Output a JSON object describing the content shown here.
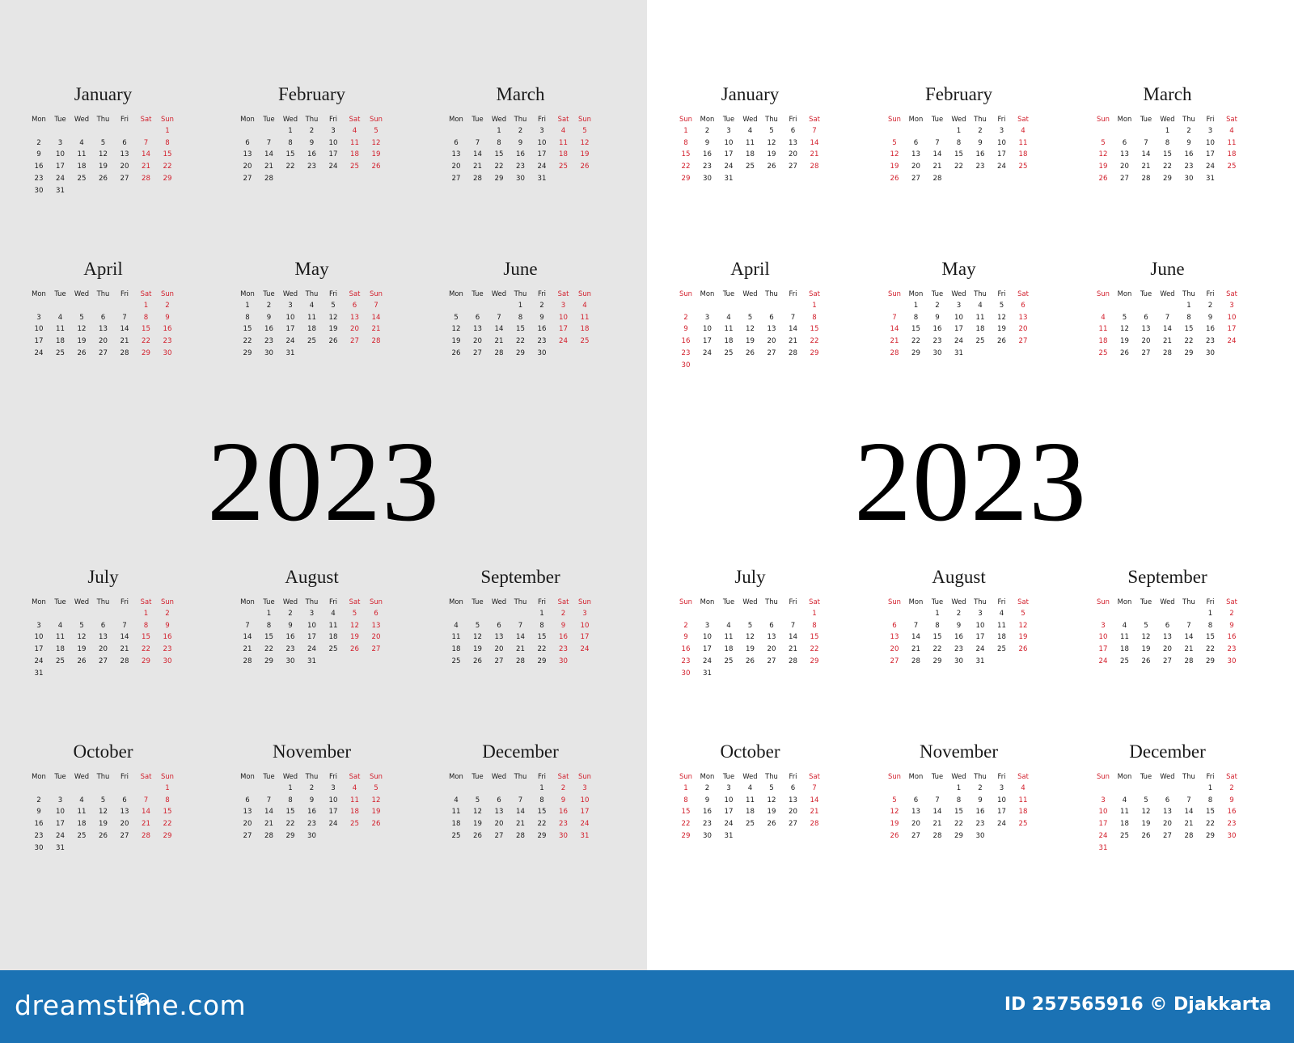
{
  "year": "2023",
  "colors": {
    "weekend": "#d21e2b",
    "text": "#1a1a1a",
    "gray_bg": "#e6e6e6",
    "banner": "#1b72b4"
  },
  "panels": [
    {
      "id": "mon-first",
      "background": "#e6e6e6",
      "week_start": "Mon",
      "weekday_labels": [
        "Mon",
        "Tue",
        "Wed",
        "Thu",
        "Fri",
        "Sat",
        "Sun"
      ],
      "weekend_columns": [
        5,
        6
      ],
      "year_text": "2023"
    },
    {
      "id": "sun-first",
      "background": "#ffffff",
      "week_start": "Sun",
      "weekday_labels": [
        "Sun",
        "Mon",
        "Tue",
        "Wed",
        "Thu",
        "Fri",
        "Sat"
      ],
      "weekend_columns": [
        0,
        6
      ],
      "year_text": "2023"
    }
  ],
  "months": [
    {
      "name": "January",
      "days": 31,
      "first_weekday_sun0": 0
    },
    {
      "name": "February",
      "days": 28,
      "first_weekday_sun0": 3
    },
    {
      "name": "March",
      "days": 31,
      "first_weekday_sun0": 3
    },
    {
      "name": "April",
      "days": 30,
      "first_weekday_sun0": 6
    },
    {
      "name": "May",
      "days": 31,
      "first_weekday_sun0": 1
    },
    {
      "name": "June",
      "days": 30,
      "first_weekday_sun0": 4
    },
    {
      "name": "July",
      "days": 31,
      "first_weekday_sun0": 6
    },
    {
      "name": "August",
      "days": 31,
      "first_weekday_sun0": 2
    },
    {
      "name": "September",
      "days": 30,
      "first_weekday_sun0": 5
    },
    {
      "name": "October",
      "days": 31,
      "first_weekday_sun0": 0
    },
    {
      "name": "November",
      "days": 30,
      "first_weekday_sun0": 3
    },
    {
      "name": "December",
      "days": 31,
      "first_weekday_sun0": 5
    }
  ],
  "footer": {
    "logo_text": "dreamstime.com",
    "credit_text": "ID 257565916 © Djakkarta"
  }
}
